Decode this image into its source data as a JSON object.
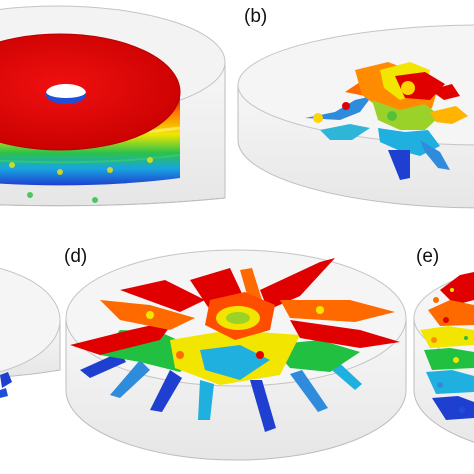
{
  "figure": {
    "panels": [
      {
        "label": "(b)",
        "content": "dendritic-cluster"
      },
      {
        "label": "(d)",
        "content": "dendritic-cluster-large"
      },
      {
        "label": "(e)",
        "content": "scattered-fragments"
      }
    ],
    "colors": {
      "top": "#e00000",
      "upper": "#ff6a00",
      "middle": "#f2e600",
      "lower": "#22c040",
      "base": "#1a9ee0",
      "bottom": "#1f3fd0",
      "container_stroke": "#bdbdbd",
      "container_fill": "#f4f4f4"
    }
  }
}
